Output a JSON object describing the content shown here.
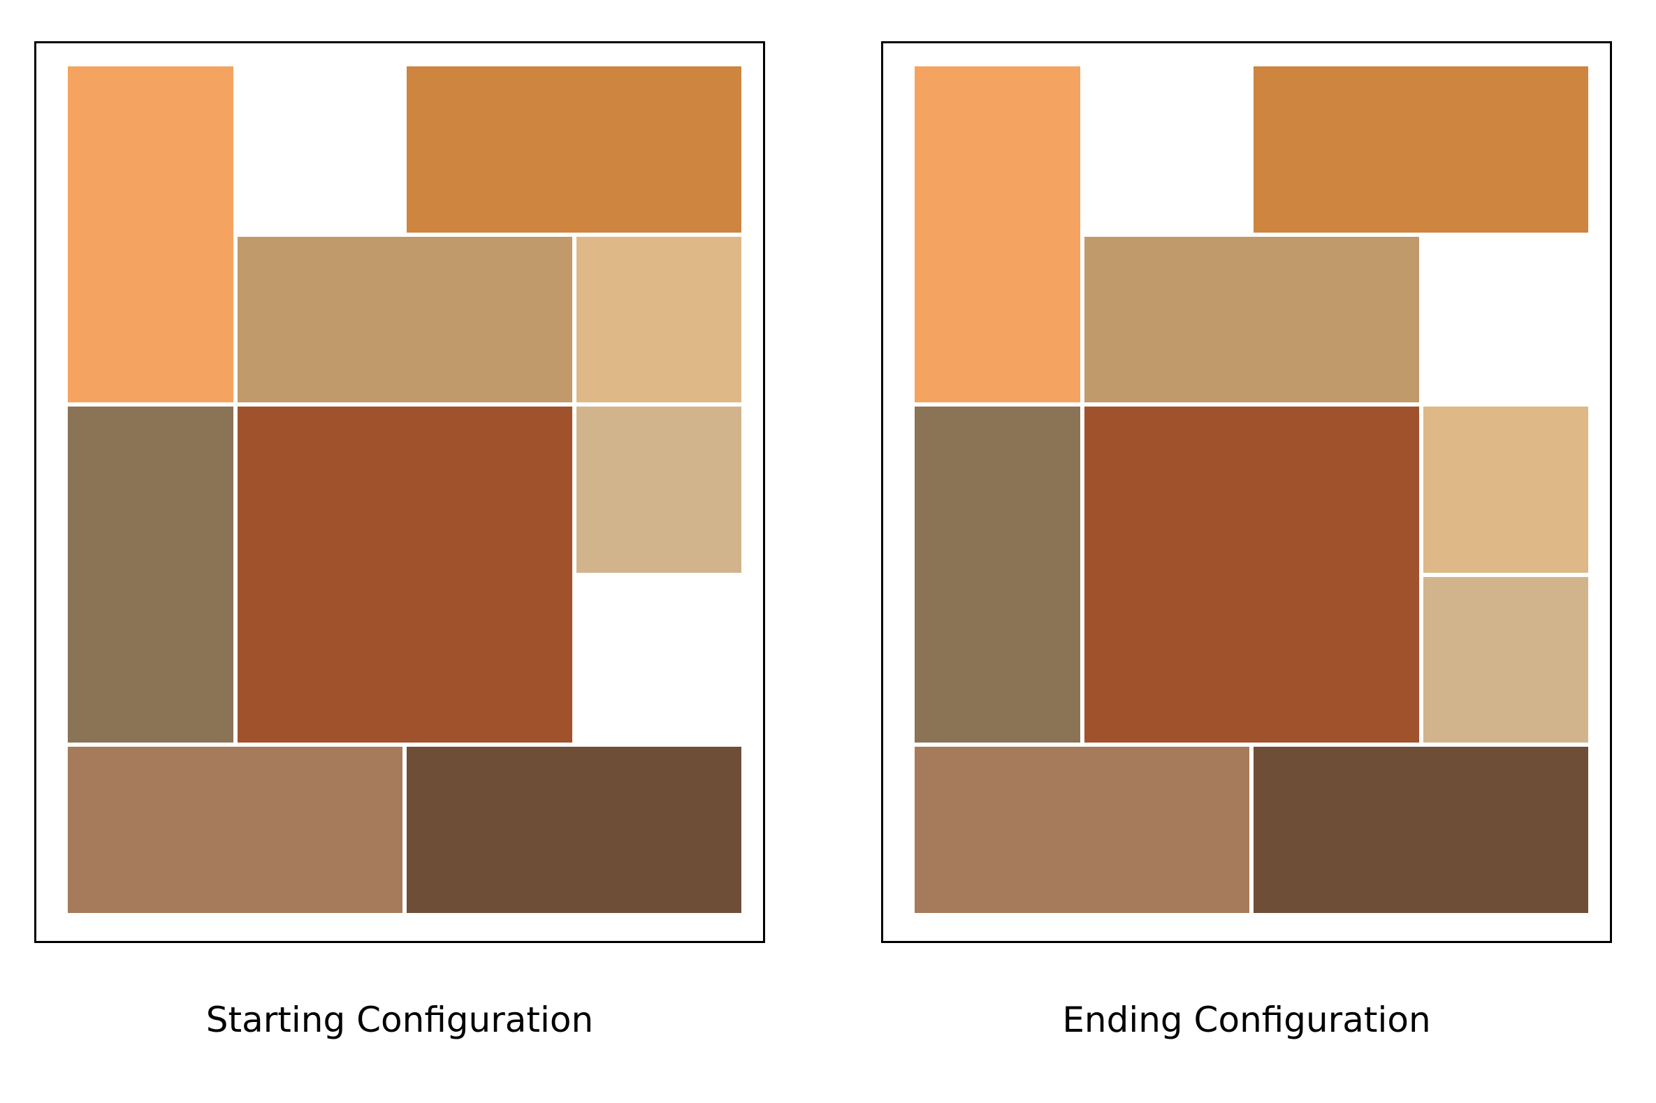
{
  "grid": {
    "cols": 4,
    "rows": 5
  },
  "colors": {
    "A": "#F4A460",
    "B": "#CD853F",
    "C": "#C19A6B",
    "D": "#DEB887",
    "E": "#D2B48C",
    "F": "#8B7355",
    "G": "#A0522D",
    "H": "#A67B5B",
    "I": "#6F4E37"
  },
  "boards": [
    {
      "caption": "Starting Configuration",
      "pieces": [
        {
          "id": "A",
          "col": 0,
          "row": 0,
          "w": 1,
          "h": 2
        },
        {
          "id": "B",
          "col": 2,
          "row": 0,
          "w": 2,
          "h": 1
        },
        {
          "id": "C",
          "col": 1,
          "row": 1,
          "w": 2,
          "h": 1
        },
        {
          "id": "D",
          "col": 3,
          "row": 1,
          "w": 1,
          "h": 1
        },
        {
          "id": "F",
          "col": 0,
          "row": 2,
          "w": 1,
          "h": 2
        },
        {
          "id": "G",
          "col": 1,
          "row": 2,
          "w": 2,
          "h": 2
        },
        {
          "id": "E",
          "col": 3,
          "row": 2,
          "w": 1,
          "h": 1
        },
        {
          "id": "H",
          "col": 0,
          "row": 4,
          "w": 2,
          "h": 1
        },
        {
          "id": "I",
          "col": 2,
          "row": 4,
          "w": 2,
          "h": 1
        }
      ]
    },
    {
      "caption": "Ending Configuration",
      "pieces": [
        {
          "id": "A",
          "col": 0,
          "row": 0,
          "w": 1,
          "h": 2
        },
        {
          "id": "B",
          "col": 2,
          "row": 0,
          "w": 2,
          "h": 1
        },
        {
          "id": "C",
          "col": 1,
          "row": 1,
          "w": 2,
          "h": 1
        },
        {
          "id": "F",
          "col": 0,
          "row": 2,
          "w": 1,
          "h": 2
        },
        {
          "id": "G",
          "col": 1,
          "row": 2,
          "w": 2,
          "h": 2
        },
        {
          "id": "D",
          "col": 3,
          "row": 2,
          "w": 1,
          "h": 1
        },
        {
          "id": "E",
          "col": 3,
          "row": 3,
          "w": 1,
          "h": 1
        },
        {
          "id": "H",
          "col": 0,
          "row": 4,
          "w": 2,
          "h": 1
        },
        {
          "id": "I",
          "col": 2,
          "row": 4,
          "w": 2,
          "h": 1
        }
      ]
    }
  ]
}
